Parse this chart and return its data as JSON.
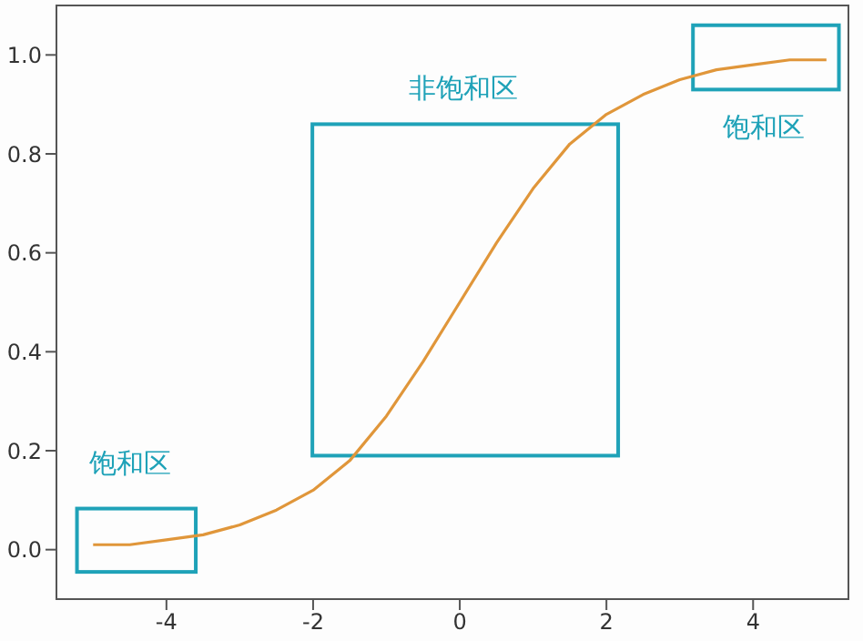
{
  "chart_data": {
    "type": "line",
    "x": [
      -5,
      -4.5,
      -4,
      -3.5,
      -3,
      -2.5,
      -2,
      -1.5,
      -1,
      -0.5,
      0,
      0.5,
      1,
      1.5,
      2,
      2.5,
      3,
      3.5,
      4,
      4.5,
      5
    ],
    "series": [
      {
        "color": "#e0963a",
        "values": [
          0.01,
          0.01,
          0.02,
          0.03,
          0.05,
          0.08,
          0.12,
          0.18,
          0.27,
          0.38,
          0.5,
          0.62,
          0.73,
          0.82,
          0.88,
          0.92,
          0.95,
          0.97,
          0.98,
          0.99,
          0.99
        ]
      }
    ],
    "xlim": [
      -5.5,
      5.3
    ],
    "xticks": [
      -4,
      -2,
      0,
      2,
      4
    ],
    "ylim": [
      -0.1,
      1.1
    ],
    "yticks": [
      {
        "value": 0,
        "label": "0.0"
      },
      {
        "value": 0.2,
        "label": "0.2"
      },
      {
        "value": 0.4,
        "label": "0.4"
      },
      {
        "value": 0.6,
        "label": "0.6"
      },
      {
        "value": 0.8,
        "label": "0.8"
      },
      {
        "value": 1,
        "label": "1.0"
      }
    ],
    "annotations": [
      "饱和区",
      "非饱和区",
      "饱和区"
    ],
    "grid": false,
    "legend": false,
    "marker": "none",
    "line_style": "solid"
  }
}
